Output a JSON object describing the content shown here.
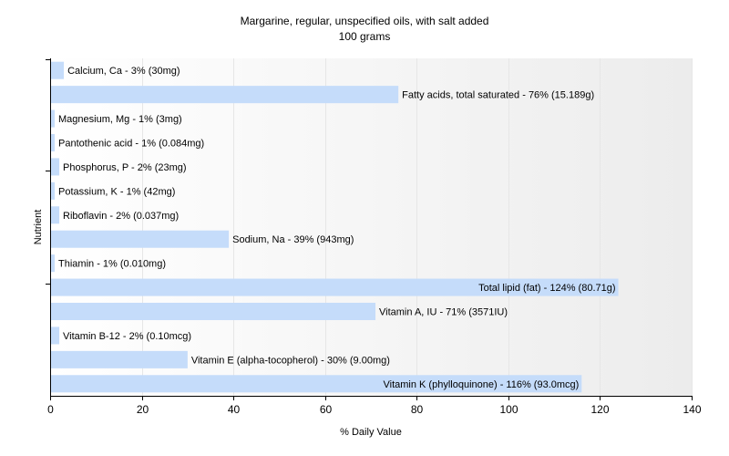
{
  "chart_data": {
    "type": "bar",
    "orientation": "horizontal",
    "title": "Margarine, regular, unspecified oils, with salt added",
    "subtitle": "100 grams",
    "xlabel": "% Daily Value",
    "ylabel": "Nutrient",
    "xlim": [
      0,
      140
    ],
    "xticks": [
      0,
      20,
      40,
      60,
      80,
      100,
      120,
      140
    ],
    "grid": true,
    "colors": {
      "bar": "#c5dcfa",
      "grid": "#e6e6e6",
      "axis": "#000000",
      "panel_start": "#ffffff",
      "panel_end": "#ececec"
    },
    "categories": [
      "Calcium, Ca",
      "Fatty acids, total saturated",
      "Magnesium, Mg",
      "Pantothenic acid",
      "Phosphorus, P",
      "Potassium, K",
      "Riboflavin",
      "Sodium, Na",
      "Thiamin",
      "Total lipid (fat)",
      "Vitamin A, IU",
      "Vitamin B-12",
      "Vitamin E (alpha-tocopherol)",
      "Vitamin K (phylloquinone)"
    ],
    "values": [
      3,
      76,
      1,
      1,
      2,
      1,
      2,
      39,
      1,
      124,
      71,
      2,
      30,
      116
    ],
    "labels": [
      "Calcium, Ca - 3% (30mg)",
      "Fatty acids, total saturated - 76% (15.189g)",
      "Magnesium, Mg - 1% (3mg)",
      "Pantothenic acid - 1% (0.084mg)",
      "Phosphorus, P - 2% (23mg)",
      "Potassium, K - 1% (42mg)",
      "Riboflavin - 2% (0.037mg)",
      "Sodium, Na - 39% (943mg)",
      "Thiamin - 1% (0.010mg)",
      "Total lipid (fat) - 124% (80.71g)",
      "Vitamin A, IU - 71% (3571IU)",
      "Vitamin B-12 - 2% (0.10mcg)",
      "Vitamin E (alpha-tocopherol) - 30% (9.00mg)",
      "Vitamin K (phylloquinone) - 116% (93.0mcg)"
    ]
  }
}
